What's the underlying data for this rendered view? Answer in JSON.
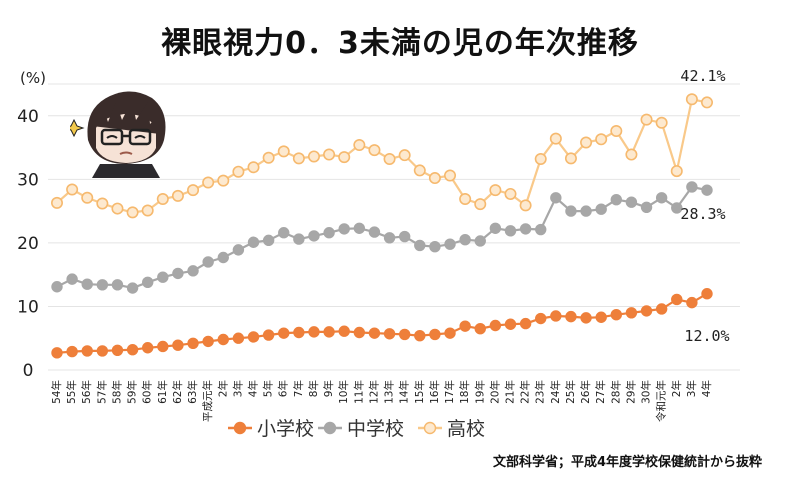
{
  "chart_data": {
    "type": "line",
    "title": "裸眼視力0．3未満の児の年次推移",
    "ylabel": "(%)",
    "ylim": [
      0,
      45
    ],
    "yticks": [
      0,
      10,
      20,
      30,
      40
    ],
    "grid": true,
    "legend_position": "bottom",
    "categories": [
      "54年",
      "55年",
      "56年",
      "57年",
      "58年",
      "59年",
      "60年",
      "61年",
      "62年",
      "63年",
      "平成元年",
      "2年",
      "3年",
      "4年",
      "5年",
      "6年",
      "7年",
      "8年",
      "9年",
      "10年",
      "11年",
      "12年",
      "13年",
      "14年",
      "15年",
      "16年",
      "17年",
      "18年",
      "19年",
      "20年",
      "21年",
      "22年",
      "23年",
      "24年",
      "25年",
      "26年",
      "27年",
      "28年",
      "29年",
      "30年",
      "令和元年",
      "2年",
      "3年",
      "4年"
    ],
    "series": [
      {
        "name": "小学校",
        "color": "#ee7f3a",
        "values": [
          2.7,
          2.9,
          3.0,
          3.0,
          3.1,
          3.2,
          3.5,
          3.7,
          3.9,
          4.2,
          4.5,
          4.8,
          5.0,
          5.2,
          5.5,
          5.8,
          5.9,
          6.0,
          6.0,
          6.1,
          5.9,
          5.8,
          5.7,
          5.6,
          5.4,
          5.6,
          5.8,
          6.9,
          6.5,
          7.0,
          7.2,
          7.3,
          8.1,
          8.5,
          8.4,
          8.2,
          8.3,
          8.7,
          9.0,
          9.3,
          9.6,
          11.1,
          10.6,
          12.0
        ]
      },
      {
        "name": "中学校",
        "color": "#a7a7a7",
        "values": [
          13.1,
          14.3,
          13.5,
          13.4,
          13.4,
          12.9,
          13.8,
          14.6,
          15.2,
          15.6,
          17.0,
          17.7,
          18.9,
          20.1,
          20.4,
          21.6,
          20.6,
          21.1,
          21.6,
          22.2,
          22.3,
          21.7,
          20.8,
          21.0,
          19.6,
          19.4,
          19.8,
          20.5,
          20.3,
          22.3,
          21.9,
          22.2,
          22.1,
          27.1,
          25.0,
          25.0,
          25.3,
          26.8,
          26.4,
          25.6,
          27.1,
          25.5,
          28.8,
          28.3
        ]
      },
      {
        "name": "高校",
        "color": "#f9c98a",
        "values": [
          26.3,
          28.4,
          27.1,
          26.2,
          25.4,
          24.8,
          25.1,
          26.9,
          27.4,
          28.3,
          29.5,
          29.8,
          31.2,
          31.9,
          33.4,
          34.4,
          33.3,
          33.6,
          33.9,
          33.5,
          35.4,
          34.6,
          33.2,
          33.8,
          31.4,
          30.2,
          30.6,
          26.9,
          26.1,
          28.3,
          27.7,
          25.9,
          33.2,
          36.4,
          33.3,
          35.8,
          36.3,
          37.6,
          33.9,
          39.4,
          38.9,
          31.3,
          42.6,
          42.1
        ]
      }
    ],
    "annotations": [
      "42.1%",
      "28.3%",
      "12.0%"
    ]
  },
  "legend": [
    "小学校",
    "中学校",
    "高校"
  ],
  "source_text": "文部科学省；平成4年度学校保健統計から抜粋"
}
